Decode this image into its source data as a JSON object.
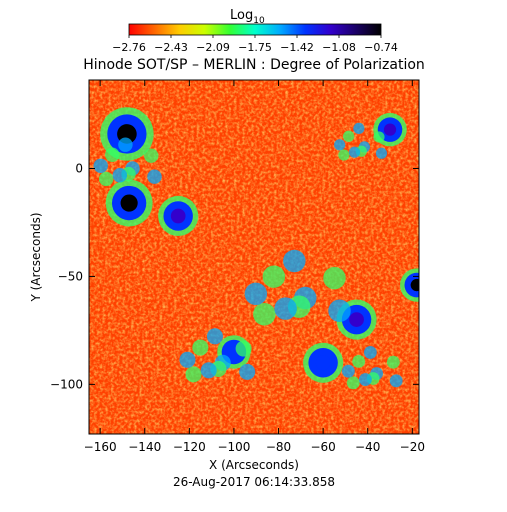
{
  "chart_data": {
    "type": "heatmap",
    "title": "Hinode SOT/SP – MERLIN : Degree of Polarization",
    "xlabel": "X (Arcseconds)",
    "ylabel": "Y (Arcseconds)",
    "timestamp": "26-Aug-2017 06:14:33.858",
    "colorbar": {
      "title_base": "Log",
      "title_sub": "10",
      "range": [
        -2.76,
        -0.74
      ],
      "ticks": [
        "−2.76",
        "−2.43",
        "−2.09",
        "−1.75",
        "−1.42",
        "−1.08",
        "−0.74"
      ],
      "colormap": [
        "#ff0000",
        "#ff6600",
        "#ffcc00",
        "#ccff00",
        "#33ff33",
        "#00ffcc",
        "#00aaff",
        "#0033ff",
        "#3300cc",
        "#1a0066",
        "#000000"
      ]
    },
    "xlim": [
      -165,
      -17
    ],
    "ylim": [
      -123,
      41
    ],
    "xticks": [
      {
        "v": -160,
        "label": "−160"
      },
      {
        "v": -140,
        "label": "−140"
      },
      {
        "v": -120,
        "label": "−120"
      },
      {
        "v": -100,
        "label": "−100"
      },
      {
        "v": -80,
        "label": "−80"
      },
      {
        "v": -60,
        "label": "−60"
      },
      {
        "v": -40,
        "label": "−40"
      },
      {
        "v": -20,
        "label": "−20"
      }
    ],
    "yticks": [
      {
        "v": 0,
        "label": "0"
      },
      {
        "v": -50,
        "label": "−50"
      },
      {
        "v": -100,
        "label": "−100"
      }
    ],
    "features": [
      {
        "kind": "spot",
        "x": -148,
        "y": 16,
        "r": 8,
        "value": -0.74
      },
      {
        "kind": "spot",
        "x": -147,
        "y": -16,
        "r": 7,
        "value": -0.74
      },
      {
        "kind": "spot",
        "x": -18,
        "y": -54,
        "r": 5,
        "value": -0.8
      },
      {
        "kind": "blob",
        "x": -125,
        "y": -22,
        "r": 6,
        "value": -1.1
      },
      {
        "kind": "blob",
        "x": -30,
        "y": 18,
        "r": 5,
        "value": -1.15
      },
      {
        "kind": "blob",
        "x": -45,
        "y": -70,
        "r": 6,
        "value": -1.2
      },
      {
        "kind": "blob",
        "x": -60,
        "y": -90,
        "r": 6,
        "value": -1.25
      },
      {
        "kind": "blob",
        "x": -100,
        "y": -85,
        "r": 5,
        "value": -1.3
      },
      {
        "kind": "network",
        "x": -75,
        "y": -60,
        "r": 28,
        "value": -1.6
      },
      {
        "kind": "network",
        "x": -110,
        "y": -90,
        "r": 20,
        "value": -1.7
      },
      {
        "kind": "network",
        "x": -150,
        "y": 0,
        "r": 18,
        "value": -1.8
      },
      {
        "kind": "network",
        "x": -45,
        "y": 10,
        "r": 14,
        "value": -1.9
      },
      {
        "kind": "network",
        "x": -40,
        "y": -95,
        "r": 16,
        "value": -1.8
      }
    ]
  }
}
